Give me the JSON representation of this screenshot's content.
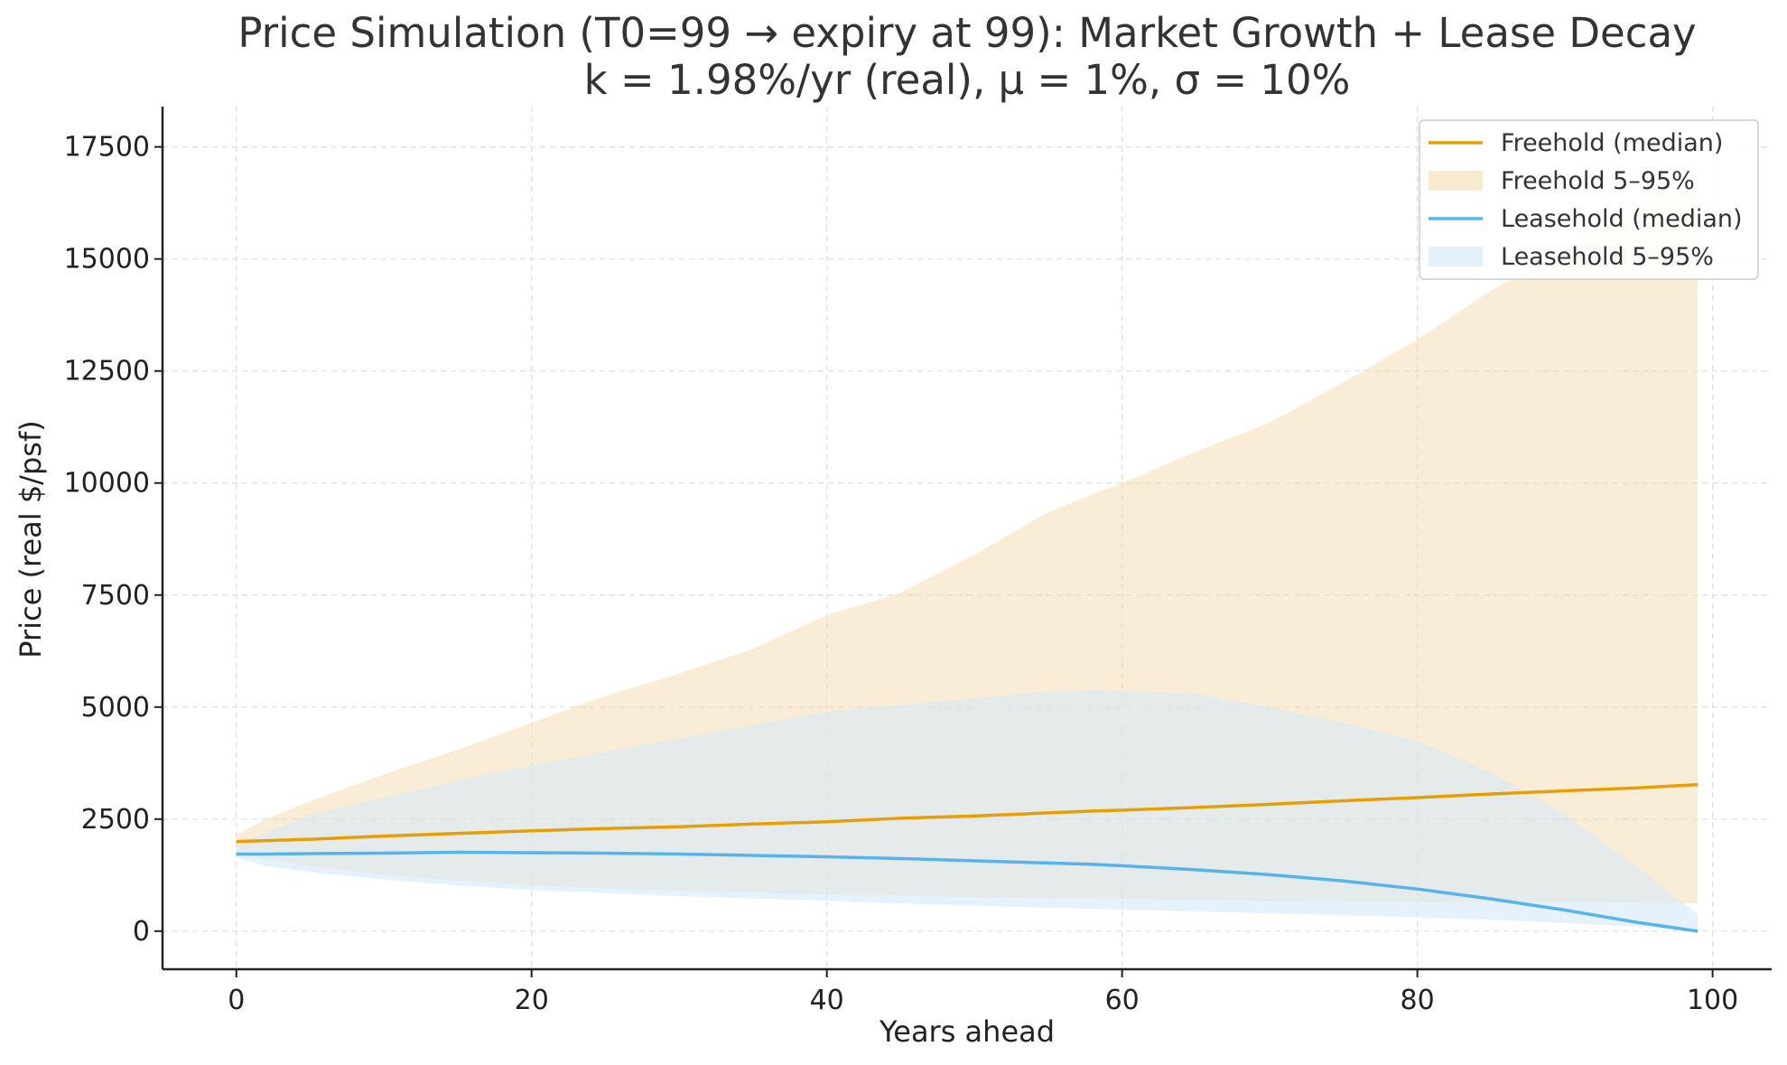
{
  "chart_data": {
    "type": "line",
    "title": "Price Simulation (T0=99 → expiry at 99): Market Growth + Lease Decay",
    "subtitle": "k = 1.98%/yr (real), μ = 1%, σ = 10%",
    "xlabel": "Years ahead",
    "ylabel": "Price (real $/psf)",
    "xlim": [
      -5,
      104
    ],
    "ylim": [
      -850,
      18400
    ],
    "x_ticks": [
      0,
      20,
      40,
      60,
      80,
      100
    ],
    "y_ticks": [
      0,
      2500,
      5000,
      7500,
      10000,
      12500,
      15000,
      17500
    ],
    "grid": true,
    "legend_position": "top-right",
    "x": [
      0,
      2,
      5,
      10,
      15,
      20,
      25,
      30,
      35,
      40,
      45,
      50,
      55,
      58,
      60,
      65,
      70,
      75,
      80,
      85,
      90,
      95,
      99
    ],
    "series": [
      {
        "name": "Freehold (median)",
        "kind": "line",
        "color": "#E69F00",
        "values": [
          2000,
          2020,
          2050,
          2120,
          2180,
          2240,
          2290,
          2330,
          2390,
          2440,
          2520,
          2570,
          2640,
          2680,
          2700,
          2760,
          2830,
          2910,
          2980,
          3060,
          3130,
          3200,
          3270
        ]
      },
      {
        "name": "Freehold 5–95%",
        "kind": "band",
        "color": "#F5DEB3",
        "lower": [
          1750,
          1600,
          1450,
          1260,
          1130,
          1030,
          950,
          900,
          860,
          820,
          790,
          760,
          740,
          730,
          720,
          700,
          680,
          670,
          660,
          650,
          640,
          630,
          620
        ],
        "upper": [
          2150,
          2500,
          2900,
          3500,
          4050,
          4650,
          5250,
          5750,
          6300,
          7050,
          7550,
          8400,
          9350,
          9750,
          10000,
          10700,
          11350,
          12250,
          13200,
          14300,
          15200,
          16250,
          16650
        ]
      },
      {
        "name": "Leasehold (median)",
        "kind": "line",
        "color": "#56B4E9",
        "values": [
          1720,
          1720,
          1730,
          1740,
          1760,
          1750,
          1740,
          1720,
          1690,
          1660,
          1620,
          1570,
          1520,
          1490,
          1460,
          1370,
          1260,
          1120,
          940,
          720,
          470,
          190,
          0
        ]
      },
      {
        "name": "Leasehold 5–95%",
        "kind": "band",
        "color": "#D6EAF8",
        "lower": [
          1650,
          1450,
          1320,
          1150,
          1020,
          920,
          850,
          780,
          730,
          680,
          620,
          570,
          520,
          500,
          480,
          440,
          400,
          360,
          310,
          250,
          180,
          100,
          0
        ],
        "upper": [
          1900,
          2200,
          2600,
          2980,
          3360,
          3700,
          4000,
          4300,
          4600,
          4900,
          5050,
          5200,
          5350,
          5380,
          5360,
          5300,
          5000,
          4650,
          4250,
          3550,
          2600,
          1400,
          380
        ]
      }
    ]
  }
}
